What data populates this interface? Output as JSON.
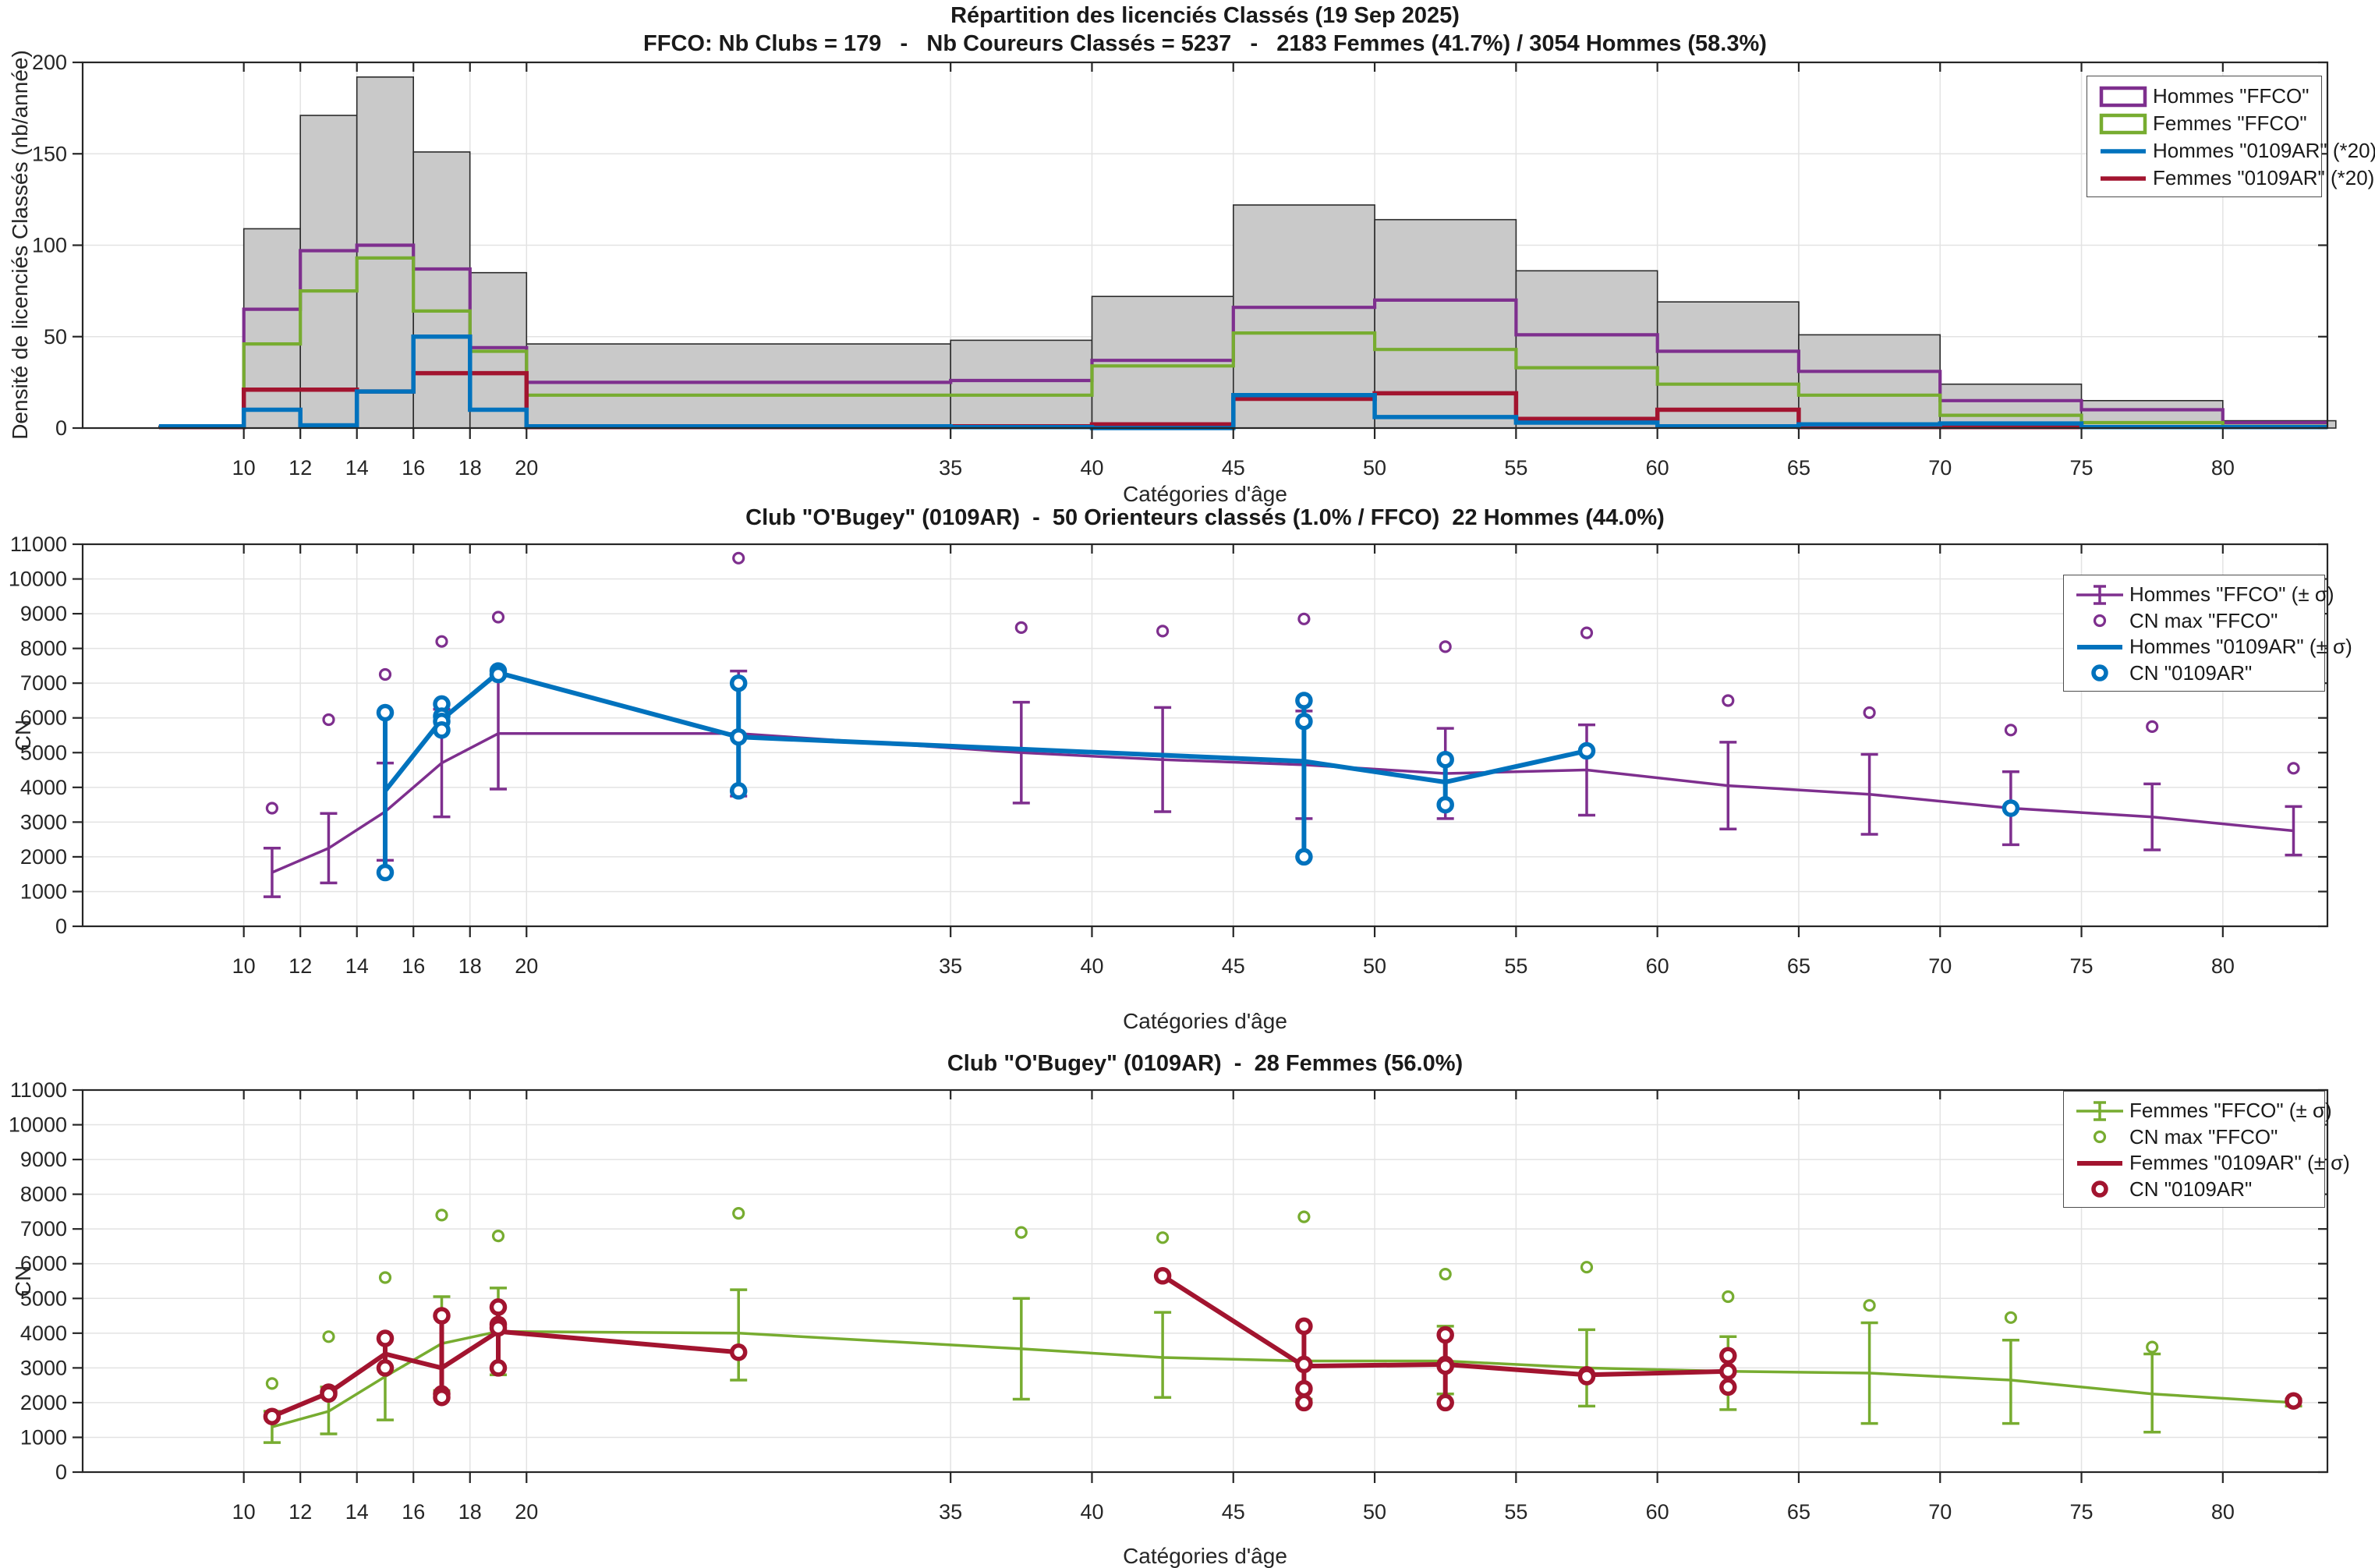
{
  "chart_data": {
    "colors": {
      "hommes_ffco": "#7E2F8E",
      "femmes_ffco": "#77AC30",
      "hommes_club": "#0072BD",
      "femmes_club": "#A2142F",
      "hist_fill": "#C9C9C9",
      "hist_edge": "#2B2B2B",
      "grid": "#E3E3E3",
      "axis": "#262626"
    },
    "x_axis": {
      "label": "Catégories d'âge",
      "ticks": [
        10,
        12,
        14,
        16,
        18,
        20,
        35,
        40,
        45,
        50,
        55,
        60,
        65,
        70,
        75,
        80
      ],
      "min": 4.3,
      "max": 83.7
    },
    "top": {
      "type": "bar",
      "title": "Répartition des licenciés Classés (19 Sep 2025)",
      "subtitle": "FFCO: Nb Clubs = 179   -   Nb Coureurs Classés = 5237   -   2183 Femmes (41.7%) / 3054 Hommes (58.3%)",
      "ylabel": "Densité de licenciés Classés (nb/année)",
      "ylim": [
        0,
        200
      ],
      "yticks": [
        0,
        50,
        100,
        150,
        200
      ],
      "bin_edges": [
        7,
        10,
        12,
        14,
        16,
        18,
        20,
        35,
        40,
        45,
        50,
        55,
        60,
        65,
        70,
        75,
        80,
        84
      ],
      "series": [
        {
          "name": "Total FFCO",
          "style": "bars",
          "color_key": "hist_fill",
          "values": [
            1,
            109,
            171,
            192,
            151,
            85,
            46,
            48,
            72,
            122,
            114,
            86,
            69,
            51,
            24,
            15,
            4
          ]
        },
        {
          "name": "Hommes FFCO",
          "style": "stairs",
          "color_key": "hommes_ffco",
          "values": [
            1,
            65,
            97,
            100,
            87,
            44,
            25,
            26,
            37,
            66,
            70,
            51,
            42,
            31,
            15,
            10,
            3
          ]
        },
        {
          "name": "Femmes FFCO",
          "style": "stairs",
          "color_key": "femmes_ffco",
          "values": [
            0.5,
            46,
            75,
            93,
            64,
            42,
            18,
            18,
            34,
            52,
            43,
            33,
            24,
            18,
            7,
            3,
            1
          ]
        },
        {
          "name": "Femmes 0109AR x20",
          "style": "stairs-thick",
          "color_key": "femmes_club",
          "values": [
            0.5,
            21,
            21,
            20,
            30,
            30,
            0.5,
            1,
            2,
            16,
            19,
            5,
            10,
            0.5,
            0.5,
            0.5,
            0.5
          ]
        },
        {
          "name": "Hommes 0109AR x20",
          "style": "stairs-thick",
          "color_key": "hommes_club",
          "values": [
            1,
            10,
            1.5,
            20,
            50,
            10,
            1,
            0.5,
            0,
            18,
            6,
            3,
            1,
            2,
            2.5,
            0.5,
            0.5
          ]
        }
      ],
      "legend": [
        "Hommes \"FFCO\"",
        "Femmes \"FFCO\"",
        "Hommes \"0109AR\" (*20)",
        "Femmes \"0109AR\" (*20)"
      ]
    },
    "middle": {
      "type": "line",
      "title": "Club \"O'Bugey\" (0109AR)  -  50 Orienteurs classés (1.0% / FFCO)  22 Hommes (44.0%)",
      "ylabel": "CN",
      "ylim": [
        0,
        11000
      ],
      "yticks": [
        0,
        1000,
        2000,
        3000,
        4000,
        5000,
        6000,
        7000,
        8000,
        9000,
        10000,
        11000
      ],
      "x": [
        11,
        13,
        15,
        17,
        19,
        27.5,
        37.5,
        42.5,
        47.5,
        52.5,
        57.5,
        62.5,
        67.5,
        72.5,
        77.5,
        82.5
      ],
      "ffco": {
        "mean": [
          1550,
          2250,
          3300,
          4700,
          5550,
          5550,
          5000,
          4800,
          4650,
          4400,
          4500,
          4050,
          3800,
          3400,
          3150,
          2750
        ],
        "lo": [
          850,
          1250,
          1900,
          3150,
          3950,
          3750,
          3550,
          3300,
          3100,
          3100,
          3200,
          2800,
          2650,
          2350,
          2200,
          2050
        ],
        "hi": [
          2250,
          3250,
          4700,
          6250,
          7200,
          7350,
          6450,
          6300,
          6200,
          5700,
          5800,
          5300,
          4950,
          4450,
          4100,
          3450
        ]
      },
      "cn_max": [
        3400,
        5950,
        7250,
        8200,
        8900,
        10600,
        8600,
        8500,
        8850,
        8050,
        8450,
        6500,
        6150,
        5650,
        5750,
        4550
      ],
      "club": {
        "color_key": "hommes_club",
        "line_runs": [
          {
            "x": [
              15,
              17,
              19,
              27.5,
              47.5,
              52.5,
              57.5
            ],
            "y": [
              3900,
              5950,
              7300,
              5450,
              4750,
              4150,
              5050
            ]
          }
        ],
        "bars": [
          {
            "x": 15,
            "lo": 1550,
            "hi": 6150
          },
          {
            "x": 17,
            "lo": 5650,
            "hi": 6400
          },
          {
            "x": 27.5,
            "lo": 3900,
            "hi": 7000
          },
          {
            "x": 47.5,
            "lo": 2000,
            "hi": 6500
          },
          {
            "x": 52.5,
            "lo": 3500,
            "hi": 4800
          }
        ],
        "dots": [
          [
            15,
            6150
          ],
          [
            15,
            1550
          ],
          [
            17,
            6400
          ],
          [
            17,
            6050
          ],
          [
            17,
            5900
          ],
          [
            17,
            5650
          ],
          [
            19,
            7350
          ],
          [
            19,
            7250
          ],
          [
            27.5,
            7000
          ],
          [
            27.5,
            5450
          ],
          [
            27.5,
            3900
          ],
          [
            47.5,
            6500
          ],
          [
            47.5,
            5900
          ],
          [
            47.5,
            2000
          ],
          [
            52.5,
            4800
          ],
          [
            52.5,
            3500
          ],
          [
            57.5,
            5050
          ],
          [
            72.5,
            3400
          ]
        ]
      },
      "legend": [
        "Hommes \"FFCO\" (± σ)",
        "CN max \"FFCO\"",
        "Hommes \"0109AR\" (± σ)",
        "CN \"0109AR\""
      ]
    },
    "bottom": {
      "type": "line",
      "title": "Club \"O'Bugey\" (0109AR)  -  28 Femmes (56.0%)",
      "ylabel": "CN",
      "ylim": [
        0,
        11000
      ],
      "yticks": [
        0,
        1000,
        2000,
        3000,
        4000,
        5000,
        6000,
        7000,
        8000,
        9000,
        10000,
        11000
      ],
      "x": [
        11,
        13,
        15,
        17,
        19,
        27.5,
        37.5,
        42.5,
        47.5,
        52.5,
        57.5,
        62.5,
        67.5,
        72.5,
        77.5,
        82.5
      ],
      "ffco": {
        "mean": [
          1300,
          1750,
          2750,
          3700,
          4050,
          4000,
          3550,
          3300,
          3200,
          3200,
          3000,
          2900,
          2850,
          2650,
          2250,
          2000
        ],
        "lo": [
          850,
          1100,
          1500,
          2350,
          2800,
          2650,
          2100,
          2150,
          2100,
          2250,
          1900,
          1800,
          1400,
          1400,
          1150,
          1900
        ],
        "hi": [
          1750,
          2450,
          3850,
          5050,
          5300,
          5250,
          5000,
          4600,
          4200,
          4200,
          4100,
          3900,
          4300,
          3800,
          3400,
          2100
        ]
      },
      "cn_max": [
        2550,
        3900,
        5600,
        7400,
        6800,
        7450,
        6900,
        6750,
        7350,
        5700,
        5900,
        5050,
        4800,
        4450,
        3600,
        2100
      ],
      "club": {
        "color_key": "femmes_club",
        "line_runs": [
          {
            "x": [
              11,
              13,
              15,
              17,
              19,
              27.5
            ],
            "y": [
              1600,
              2280,
              3400,
              3000,
              4050,
              3450
            ]
          },
          {
            "x": [
              42.5,
              47.5,
              52.5,
              57.5,
              62.5
            ],
            "y": [
              5650,
              3050,
              3100,
              2800,
              2900
            ]
          }
        ],
        "bars": [
          {
            "x": 13,
            "lo": 2250,
            "hi": 2320
          },
          {
            "x": 15,
            "lo": 3000,
            "hi": 3850
          },
          {
            "x": 17,
            "lo": 2150,
            "hi": 4500
          },
          {
            "x": 19,
            "lo": 3000,
            "hi": 4750
          },
          {
            "x": 47.5,
            "lo": 2000,
            "hi": 4200
          },
          {
            "x": 52.5,
            "lo": 2000,
            "hi": 3950
          },
          {
            "x": 57.5,
            "lo": 2600,
            "hi": 3000
          },
          {
            "x": 62.5,
            "lo": 2450,
            "hi": 3350
          }
        ],
        "dots": [
          [
            11,
            1600
          ],
          [
            13,
            2300
          ],
          [
            13,
            2250
          ],
          [
            15,
            3850
          ],
          [
            15,
            3000
          ],
          [
            17,
            4500
          ],
          [
            17,
            2250
          ],
          [
            17,
            2150
          ],
          [
            19,
            4750
          ],
          [
            19,
            4250
          ],
          [
            19,
            4150
          ],
          [
            19,
            3000
          ],
          [
            27.5,
            3450
          ],
          [
            42.5,
            5650
          ],
          [
            47.5,
            4200
          ],
          [
            47.5,
            3100
          ],
          [
            47.5,
            2400
          ],
          [
            47.5,
            2000
          ],
          [
            52.5,
            3950
          ],
          [
            52.5,
            3100
          ],
          [
            52.5,
            3050
          ],
          [
            52.5,
            2000
          ],
          [
            57.5,
            2800
          ],
          [
            57.5,
            2750
          ],
          [
            62.5,
            3350
          ],
          [
            62.5,
            2900
          ],
          [
            62.5,
            2450
          ],
          [
            82.5,
            2050
          ]
        ]
      },
      "legend": [
        "Femmes \"FFCO\" (± σ)",
        "CN max \"FFCO\"",
        "Femmes \"0109AR\" (± σ)",
        "CN \"0109AR\""
      ]
    }
  }
}
